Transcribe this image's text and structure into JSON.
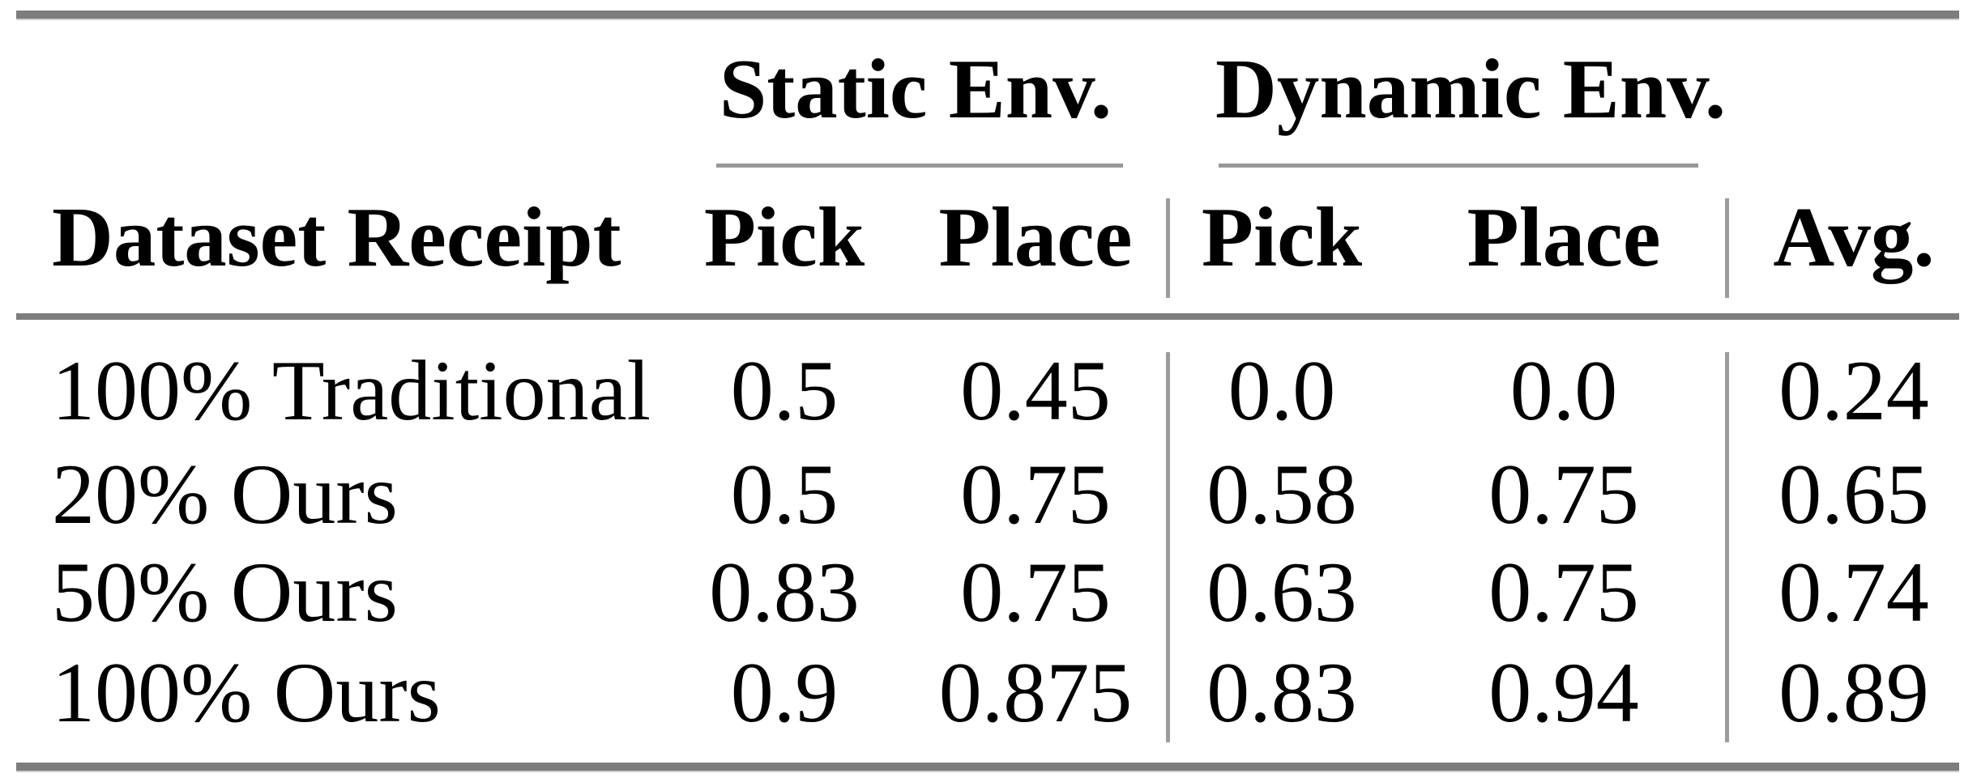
{
  "table": {
    "group_headers": [
      {
        "label": "Static Env."
      },
      {
        "label": "Dynamic Env."
      }
    ],
    "columns": {
      "row_label": "Dataset Receipt",
      "static_pick": "Pick",
      "static_place": "Place",
      "dynamic_pick": "Pick",
      "dynamic_place": "Place",
      "avg": "Avg."
    },
    "rows": [
      {
        "label": "100% Traditional",
        "static_pick": "0.5",
        "static_place": "0.45",
        "dynamic_pick": "0.0",
        "dynamic_place": "0.0",
        "avg": "0.24"
      },
      {
        "label": "20% Ours",
        "static_pick": "0.5",
        "static_place": "0.75",
        "dynamic_pick": "0.58",
        "dynamic_place": "0.75",
        "avg": "0.65"
      },
      {
        "label": "50% Ours",
        "static_pick": "0.83",
        "static_place": "0.75",
        "dynamic_pick": "0.63",
        "dynamic_place": "0.75",
        "avg": "0.74"
      },
      {
        "label": "100% Ours",
        "static_pick": "0.9",
        "static_place": "0.875",
        "dynamic_pick": "0.83",
        "dynamic_place": "0.94",
        "avg": "0.89"
      }
    ],
    "colors": {
      "text": "#000000",
      "background": "#ffffff",
      "thick_rule": "#7d7d7d",
      "thin_rule": "#979797",
      "vertical_rule": "#9c9c9c"
    }
  },
  "chart_data": {
    "type": "table",
    "title": "",
    "column_groups": [
      "",
      "Static Env.",
      "Static Env.",
      "Dynamic Env.",
      "Dynamic Env.",
      ""
    ],
    "columns": [
      "Dataset Receipt",
      "Pick",
      "Place",
      "Pick",
      "Place",
      "Avg."
    ],
    "rows": [
      [
        "100% Traditional",
        0.5,
        0.45,
        0.0,
        0.0,
        0.24
      ],
      [
        "20% Ours",
        0.5,
        0.75,
        0.58,
        0.75,
        0.65
      ],
      [
        "50% Ours",
        0.83,
        0.75,
        0.63,
        0.75,
        0.74
      ],
      [
        "100% Ours",
        0.9,
        0.875,
        0.83,
        0.94,
        0.89
      ]
    ]
  }
}
